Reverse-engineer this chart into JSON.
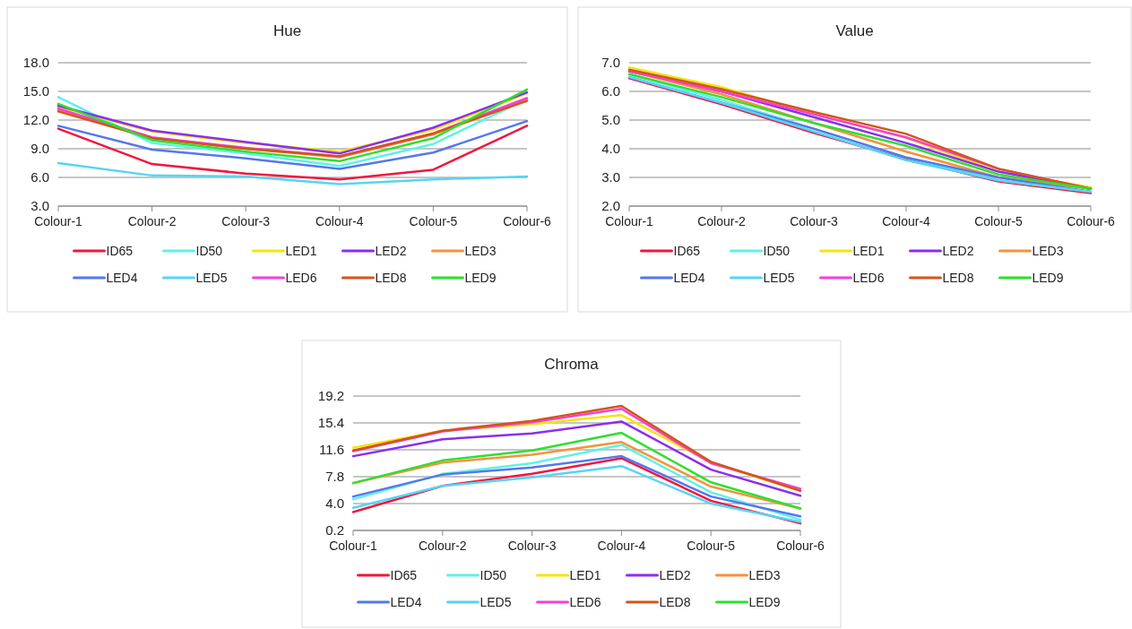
{
  "chart_data": [
    {
      "type": "line",
      "title": "Hue",
      "categories": [
        "Colour-1",
        "Colour-2",
        "Colour-3",
        "Colour-4",
        "Colour-5",
        "Colour-6"
      ],
      "ylim": [
        3,
        18
      ],
      "yticks": [
        {
          "value": 3,
          "label": "3.0"
        },
        {
          "value": 6,
          "label": "6.0"
        },
        {
          "value": 9,
          "label": "9.0"
        },
        {
          "value": 12,
          "label": "12.0"
        },
        {
          "value": 15,
          "label": "15.0"
        },
        {
          "value": 18,
          "label": "18.0"
        }
      ],
      "grid": "y",
      "legend": "bottom",
      "marker": "none",
      "series": [
        {
          "name": "ID65",
          "color": "#f0173f",
          "values": [
            11.1,
            7.4,
            6.4,
            5.8,
            6.8,
            11.4
          ]
        },
        {
          "name": "ID50",
          "color": "#5ef2e6",
          "values": [
            14.4,
            9.6,
            8.5,
            7.2,
            9.5,
            14.2
          ]
        },
        {
          "name": "LED1",
          "color": "#f2e607",
          "values": [
            13.4,
            10.8,
            9.6,
            8.7,
            11.0,
            14.8
          ]
        },
        {
          "name": "LED2",
          "color": "#8a2ef2",
          "values": [
            13.5,
            10.9,
            9.7,
            8.5,
            11.2,
            14.9
          ]
        },
        {
          "name": "LED3",
          "color": "#f7923a",
          "values": [
            13.1,
            10.1,
            9.0,
            8.1,
            10.5,
            14.1
          ]
        },
        {
          "name": "LED4",
          "color": "#5577ee",
          "values": [
            11.4,
            8.9,
            8.0,
            6.9,
            8.6,
            11.9
          ]
        },
        {
          "name": "LED5",
          "color": "#55d5f5",
          "values": [
            7.5,
            6.2,
            6.1,
            5.3,
            5.8,
            6.1
          ]
        },
        {
          "name": "LED6",
          "color": "#f53fd6",
          "values": [
            13.2,
            10.2,
            9.1,
            8.2,
            10.6,
            14.3
          ]
        },
        {
          "name": "LED8",
          "color": "#d4541a",
          "values": [
            12.9,
            10.1,
            9.0,
            8.2,
            10.6,
            14.0
          ]
        },
        {
          "name": "LED9",
          "color": "#2ee02e",
          "values": [
            13.7,
            9.9,
            8.7,
            7.7,
            10.1,
            15.2
          ]
        }
      ]
    },
    {
      "type": "line",
      "title": "Value",
      "categories": [
        "Colour-1",
        "Colour-2",
        "Colour-3",
        "Colour-4",
        "Colour-5",
        "Colour-6"
      ],
      "ylim": [
        2,
        7
      ],
      "yticks": [
        {
          "value": 2,
          "label": "2.0"
        },
        {
          "value": 3,
          "label": "3.0"
        },
        {
          "value": 4,
          "label": "4.0"
        },
        {
          "value": 5,
          "label": "5.0"
        },
        {
          "value": 6,
          "label": "6.0"
        },
        {
          "value": 7,
          "label": "7.0"
        }
      ],
      "grid": "y",
      "legend": "bottom",
      "marker": "none",
      "series": [
        {
          "name": "ID65",
          "color": "#f0173f",
          "values": [
            6.46,
            5.55,
            4.55,
            3.64,
            2.86,
            2.45
          ]
        },
        {
          "name": "ID50",
          "color": "#5ef2e6",
          "values": [
            6.6,
            5.7,
            4.7,
            3.7,
            2.9,
            2.5
          ]
        },
        {
          "name": "LED1",
          "color": "#f2e607",
          "values": [
            6.84,
            6.15,
            5.2,
            4.38,
            3.2,
            2.66
          ]
        },
        {
          "name": "LED2",
          "color": "#8a2ef2",
          "values": [
            6.7,
            6.0,
            5.1,
            4.2,
            3.2,
            2.6
          ]
        },
        {
          "name": "LED3",
          "color": "#f7923a",
          "values": [
            6.7,
            5.9,
            4.9,
            3.9,
            3.0,
            2.6
          ]
        },
        {
          "name": "LED4",
          "color": "#5577ee",
          "values": [
            6.5,
            5.6,
            4.7,
            3.7,
            3.0,
            2.5
          ]
        },
        {
          "name": "LED5",
          "color": "#55d5f5",
          "values": [
            6.5,
            5.6,
            4.6,
            3.6,
            2.9,
            2.5
          ]
        },
        {
          "name": "LED6",
          "color": "#f53fd6",
          "values": [
            6.7,
            6.0,
            5.2,
            4.4,
            3.3,
            2.6
          ]
        },
        {
          "name": "LED8",
          "color": "#d4541a",
          "values": [
            6.76,
            6.08,
            5.28,
            4.52,
            3.3,
            2.6
          ]
        },
        {
          "name": "LED9",
          "color": "#2ee02e",
          "values": [
            6.6,
            5.8,
            4.9,
            4.1,
            3.1,
            2.6
          ]
        }
      ]
    },
    {
      "type": "line",
      "title": "Chroma",
      "categories": [
        "Colour-1",
        "Colour-2",
        "Colour-3",
        "Colour-4",
        "Colour-5",
        "Colour-6"
      ],
      "ylim": [
        0.2,
        19.2
      ],
      "yticks": [
        0.2,
        {
          "value": 4,
          "label": "4.0"
        },
        7.8,
        11.6,
        15.4,
        19.2
      ],
      "grid": "y",
      "legend": "bottom",
      "marker": "none",
      "series": [
        {
          "name": "ID65",
          "color": "#f0173f",
          "values": [
            2.8,
            6.5,
            8.2,
            10.4,
            4.4,
            1.2
          ]
        },
        {
          "name": "ID50",
          "color": "#5ef2e6",
          "values": [
            4.6,
            8.2,
            9.7,
            12.3,
            5.6,
            1.7
          ]
        },
        {
          "name": "LED1",
          "color": "#f2e607",
          "values": [
            11.9,
            14.3,
            15.2,
            16.5,
            9.8,
            5.8
          ]
        },
        {
          "name": "LED2",
          "color": "#8a2ef2",
          "values": [
            10.7,
            13.1,
            13.9,
            15.6,
            8.8,
            5.1
          ]
        },
        {
          "name": "LED3",
          "color": "#f7923a",
          "values": [
            6.9,
            9.8,
            10.9,
            12.7,
            6.4,
            3.3
          ]
        },
        {
          "name": "LED4",
          "color": "#5577ee",
          "values": [
            5.0,
            8.1,
            9.1,
            10.7,
            5.0,
            2.2
          ]
        },
        {
          "name": "LED5",
          "color": "#55d5f5",
          "values": [
            3.4,
            6.5,
            7.7,
            9.3,
            4.0,
            1.4
          ]
        },
        {
          "name": "LED6",
          "color": "#f53fd6",
          "values": [
            11.4,
            14.2,
            15.5,
            17.4,
            9.7,
            6.1
          ]
        },
        {
          "name": "LED8",
          "color": "#d4541a",
          "values": [
            11.5,
            14.3,
            15.7,
            17.8,
            9.9,
            5.8
          ]
        },
        {
          "name": "LED9",
          "color": "#2ee02e",
          "values": [
            6.9,
            10.1,
            11.5,
            14.0,
            7.0,
            3.3
          ]
        }
      ]
    }
  ]
}
